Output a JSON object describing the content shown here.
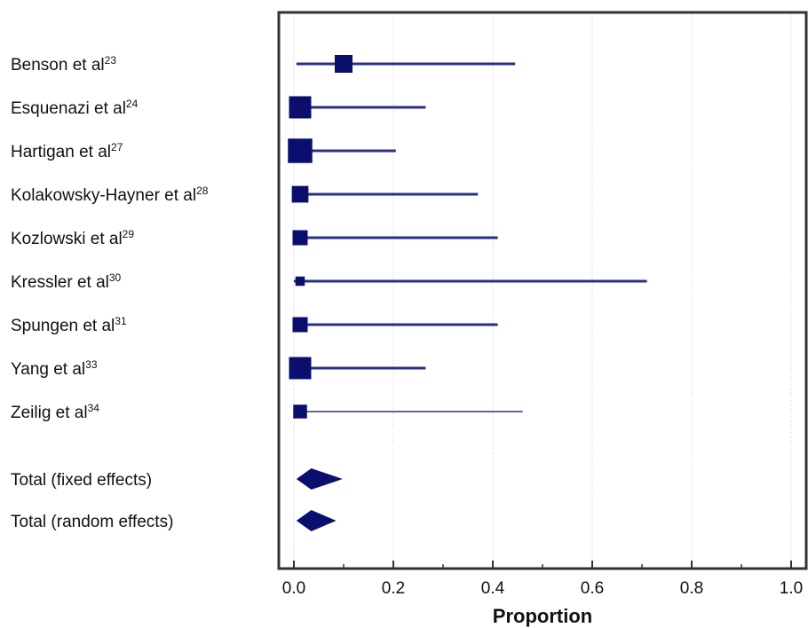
{
  "chart_data": {
    "type": "forest",
    "xlabel": "Proportion",
    "xlim": [
      -0.03,
      1.03
    ],
    "xticks": [
      {
        "value": 0.0,
        "label": "0.0"
      },
      {
        "value": 0.2,
        "label": "0.2"
      },
      {
        "value": 0.4,
        "label": "0.4"
      },
      {
        "value": 0.6,
        "label": "0.6"
      },
      {
        "value": 0.8,
        "label": "0.8"
      },
      {
        "value": 1.0,
        "label": "1.0"
      }
    ],
    "minor_ticks": [
      0.1,
      0.3,
      0.5,
      0.7,
      0.9
    ],
    "grid": "vertical dotted",
    "studies": [
      {
        "name": "Benson et al",
        "ref": "23",
        "estimate": 0.1,
        "ci_low": 0.005,
        "ci_high": 0.445,
        "weight": 0.8
      },
      {
        "name": "Esquenazi  et al",
        "ref": "24",
        "estimate": 0.0,
        "ci_low": 0.0,
        "ci_high": 0.265,
        "weight": 1.0
      },
      {
        "name": "Hartigan et al",
        "ref": "27",
        "estimate": 0.0,
        "ci_low": 0.0,
        "ci_high": 0.205,
        "weight": 1.1
      },
      {
        "name": "Kolakowsky-Hayner et al",
        "ref": "28",
        "estimate": 0.0,
        "ci_low": 0.0,
        "ci_high": 0.37,
        "weight": 0.75
      },
      {
        "name": "Kozlowski et al",
        "ref": "29",
        "estimate": 0.0,
        "ci_low": 0.0,
        "ci_high": 0.41,
        "weight": 0.68
      },
      {
        "name": "Kressler et al",
        "ref": "30",
        "estimate": 0.0,
        "ci_low": 0.0,
        "ci_high": 0.71,
        "weight": 0.42
      },
      {
        "name": "Spungen et al",
        "ref": "31",
        "estimate": 0.0,
        "ci_low": 0.0,
        "ci_high": 0.41,
        "weight": 0.68
      },
      {
        "name": "Yang et al",
        "ref": "33",
        "estimate": 0.0,
        "ci_low": 0.0,
        "ci_high": 0.265,
        "weight": 1.0
      },
      {
        "name": "Zeilig et al",
        "ref": "34",
        "estimate": 0.0,
        "ci_low": 0.0,
        "ci_high": 0.46,
        "weight": 0.62
      }
    ],
    "totals": [
      {
        "name": "Total (fixed effects)",
        "estimate": 0.035,
        "ci_low": 0.005,
        "ci_high": 0.098
      },
      {
        "name": "Total (random effects)",
        "estimate": 0.035,
        "ci_low": 0.005,
        "ci_high": 0.085
      }
    ],
    "colors": {
      "marker": "#0a0f6e",
      "ci_line": "#2a3088",
      "grid": "#c8c8c8",
      "frame": "#333333"
    }
  }
}
